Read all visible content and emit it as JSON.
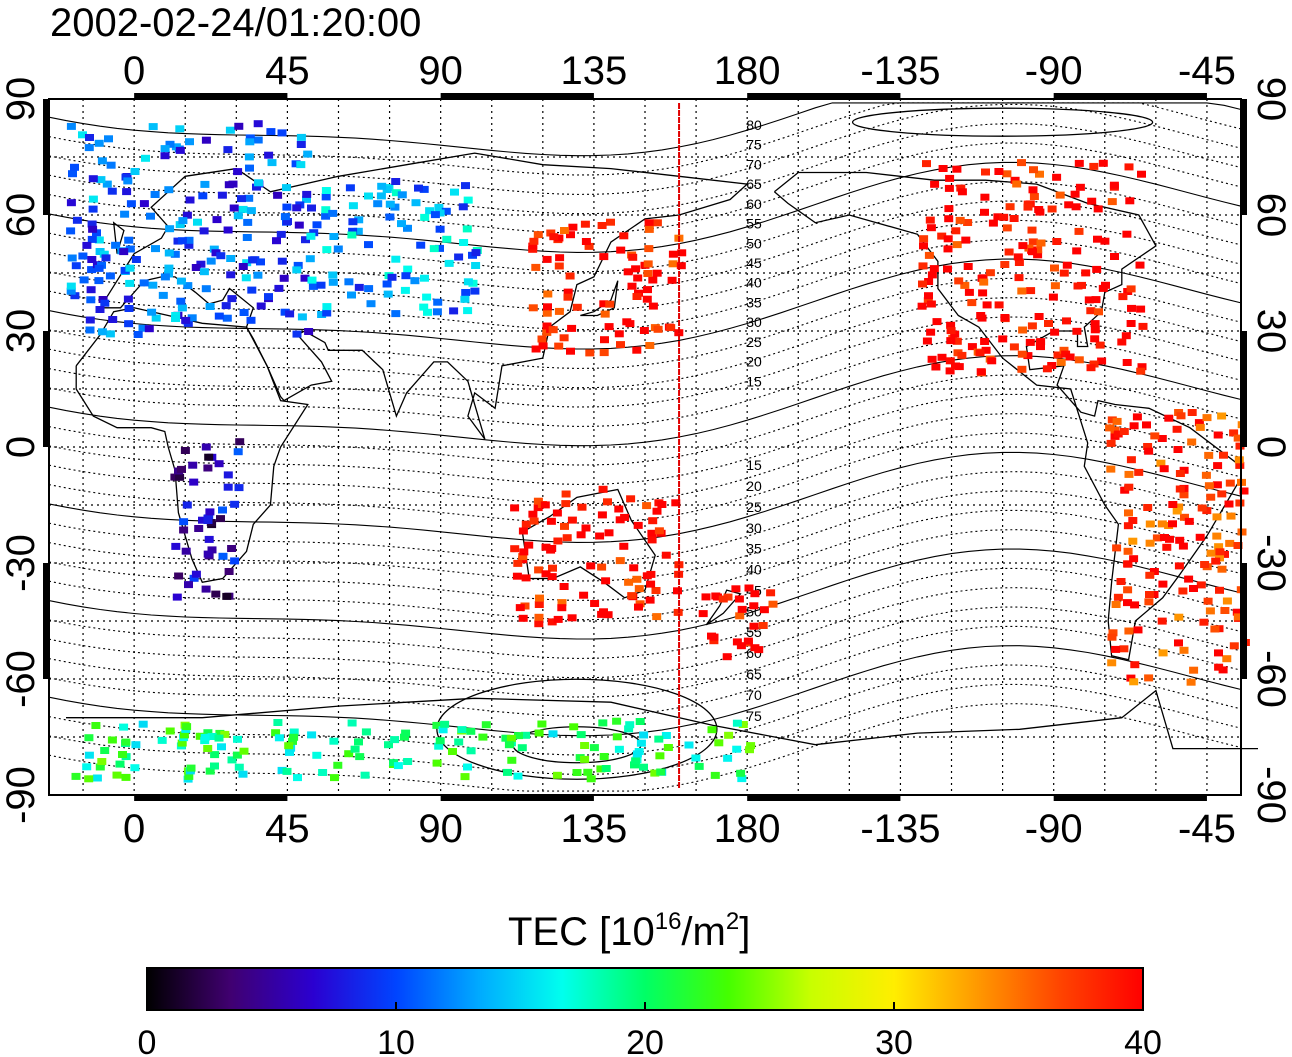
{
  "title": "2002-02-24/01:20:00",
  "map": {
    "lon_tick_labels": [
      "0",
      "45",
      "90",
      "135",
      "180",
      "-135",
      "-90",
      "-45"
    ],
    "lon_tick_values": [
      0,
      45,
      90,
      135,
      180,
      225,
      270,
      315
    ],
    "lon_range": [
      -25,
      325
    ],
    "lat_tick_labels": [
      "90",
      "60",
      "30",
      "0",
      "-30",
      "-60",
      "-90"
    ],
    "lat_tick_values": [
      90,
      60,
      30,
      0,
      -30,
      -60,
      -90
    ],
    "lat_range": [
      -90,
      90
    ],
    "grid": true,
    "terminator_lon": 160,
    "contour_labels_north": [
      "80",
      "75",
      "70",
      "65",
      "60",
      "55",
      "50",
      "45",
      "40",
      "35",
      "30",
      "25",
      "20",
      "15"
    ],
    "contour_labels_south": [
      "15",
      "20",
      "25",
      "30",
      "35",
      "40",
      "45",
      "50",
      "55",
      "60",
      "65",
      "70",
      "75"
    ],
    "land_color": "#ffffff",
    "coast_color": "#000000",
    "terminator_color": "#e00000"
  },
  "colorbar": {
    "label": "TEC  [10^16/m^2]",
    "label_main": "TEC  [10",
    "label_exp1": "16",
    "label_mid": "/m",
    "label_exp2": "2",
    "label_end": "]",
    "tick_labels": [
      "0",
      "10",
      "20",
      "30",
      "40"
    ],
    "min": 0,
    "max": 40,
    "colors": [
      "#000000",
      "#400070",
      "#2b00d0",
      "#0044ff",
      "#00aaff",
      "#00ffee",
      "#00ff66",
      "#44ff00",
      "#c8ff00",
      "#ffee00",
      "#ff9900",
      "#ff4400",
      "#ff0000"
    ]
  },
  "tec_clusters": [
    {
      "name": "europe",
      "lon": [
        -20,
        50
      ],
      "lat": [
        30,
        85
      ],
      "tec": 11
    },
    {
      "name": "siberia",
      "lon": [
        50,
        100
      ],
      "lat": [
        35,
        70
      ],
      "tec": 13
    },
    {
      "name": "east-asia",
      "lon": [
        115,
        160
      ],
      "lat": [
        25,
        60
      ],
      "tec": 40
    },
    {
      "name": "north-america",
      "lon": [
        230,
        295
      ],
      "lat": [
        20,
        75
      ],
      "tec": 40
    },
    {
      "name": "south-america",
      "lon": [
        285,
        325
      ],
      "lat": [
        -60,
        10
      ],
      "tec": 38
    },
    {
      "name": "australia",
      "lon": [
        110,
        160
      ],
      "lat": [
        -45,
        -10
      ],
      "tec": 40
    },
    {
      "name": "new-zealand",
      "lon": [
        165,
        190
      ],
      "lat": [
        -55,
        -35
      ],
      "tec": 40
    },
    {
      "name": "southern-africa",
      "lon": [
        10,
        30
      ],
      "lat": [
        -40,
        5
      ],
      "tec": 6
    },
    {
      "name": "antarctica",
      "lon": [
        -20,
        180
      ],
      "lat": [
        -85,
        -70
      ],
      "tec": 20
    }
  ]
}
